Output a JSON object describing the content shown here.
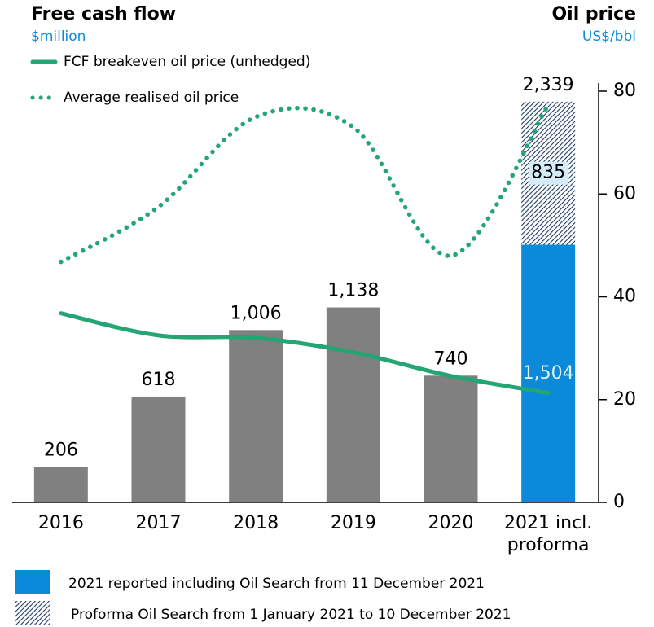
{
  "chart_data": {
    "type": "bar_line",
    "title": "Free cash flow",
    "subtitle": "$million",
    "y2_title": "Oil price",
    "y2_subtitle": "US$/bbl",
    "categories": [
      "2016",
      "2017",
      "2018",
      "2019",
      "2020",
      "2021 incl. proforma"
    ],
    "ylim": [
      0,
      2400
    ],
    "y2lim": [
      0,
      80
    ],
    "y2ticks": [
      0,
      20,
      40,
      60,
      80
    ],
    "total_label": "2,339",
    "series": [
      {
        "name": "2021 reported including Oil Search from 11 December 2021",
        "type": "bar",
        "color": "#0a8ad8",
        "colors": [
          "#808080",
          "#808080",
          "#808080",
          "#808080",
          "#808080",
          "#0a8ad8"
        ],
        "values": [
          206,
          618,
          1006,
          1138,
          740,
          1504
        ],
        "value_labels": [
          "206",
          "618",
          "1,006",
          "1,138",
          "740",
          "1,504"
        ]
      },
      {
        "name": "Proforma Oil Search from 1 January 2021 to 10 December 2021",
        "type": "bar",
        "pattern": "hatch",
        "color": "#1f3d66",
        "values": [
          null,
          null,
          null,
          null,
          null,
          835
        ],
        "value_labels": [
          null,
          null,
          null,
          null,
          null,
          "835"
        ]
      },
      {
        "name": "FCF breakeven oil price (unhedged)",
        "type": "line",
        "axis": "y2",
        "color": "#23a574",
        "dash": "solid",
        "values": [
          36.8,
          32.5,
          32,
          29.2,
          24.6,
          21.3
        ]
      },
      {
        "name": "Average realised oil price",
        "type": "line",
        "axis": "y2",
        "color": "#23a574",
        "dash": "dotted",
        "values": [
          46.8,
          57.5,
          75,
          73,
          48,
          77.3
        ]
      }
    ]
  }
}
